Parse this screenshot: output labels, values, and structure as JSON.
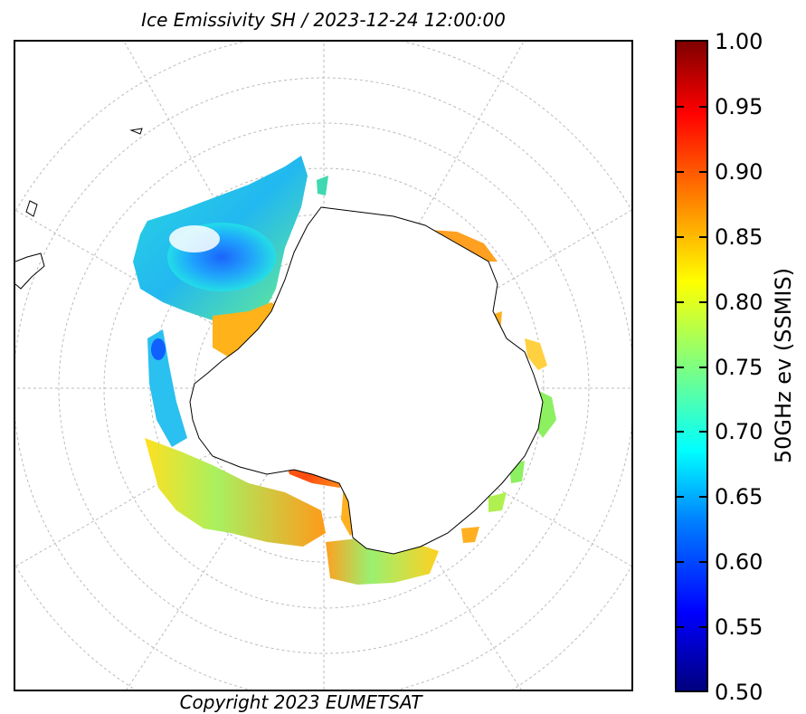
{
  "title": "Ice Emissivity SH / 2023-12-24 12:00:00",
  "copyright": "Copyright 2023 EUMETSAT",
  "colorbar": {
    "label": "50GHz ev (SSMIS)",
    "min": 0.5,
    "max": 1.0,
    "ticks": [
      "1.00",
      "0.95",
      "0.90",
      "0.85",
      "0.80",
      "0.75",
      "0.70",
      "0.65",
      "0.60",
      "0.55",
      "0.50"
    ],
    "colormap": "jet",
    "colors": [
      "#00007f",
      "#0000ff",
      "#007fff",
      "#00ffff",
      "#7fff7f",
      "#ffff00",
      "#ff7f00",
      "#ff0000",
      "#7f0000"
    ]
  },
  "map": {
    "projection": "south-polar-stereographic",
    "grid": true,
    "coastline_color": "#000000",
    "grid_color": "#bbbbbb"
  }
}
